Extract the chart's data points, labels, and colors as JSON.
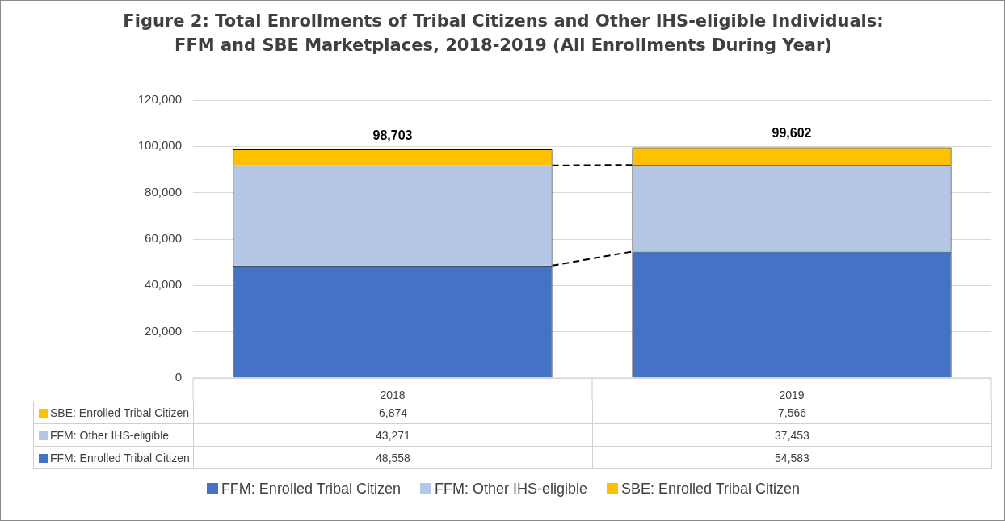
{
  "chart_data": {
    "type": "bar",
    "title": "Figure 2:  Total Enrollments of Tribal Citizens and Other IHS-eligible Individuals: FFM and SBE Marketplaces, 2018-2019 (All Enrollments During Year)",
    "categories": [
      "2018",
      "2019"
    ],
    "series": [
      {
        "name": "FFM: Enrolled Tribal Citizen",
        "color": "#4472c4",
        "values": [
          48558,
          54583
        ],
        "value_labels": [
          "48,558",
          "54,583"
        ]
      },
      {
        "name": "FFM: Other IHS-eligible",
        "color": "#b4c7e7",
        "values": [
          43271,
          37453
        ],
        "value_labels": [
          "43,271",
          "37,453"
        ]
      },
      {
        "name": "SBE: Enrolled Tribal Citizen",
        "color": "#ffc000",
        "values": [
          6874,
          7566
        ],
        "value_labels": [
          "6,874",
          "7,566"
        ]
      }
    ],
    "stacked": true,
    "totals": [
      "98,703",
      "99,602"
    ],
    "ylim": [
      0,
      120000
    ],
    "yticks": [
      0,
      {
        "value": 20000,
        "label": "20,000"
      },
      {
        "value": 40000,
        "label": "40,000"
      },
      {
        "value": 60000,
        "label": "60,000"
      },
      {
        "value": 80000,
        "label": "80,000"
      },
      {
        "value": 100000,
        "label": "100,000"
      },
      {
        "value": 120000,
        "label": "120,000"
      }
    ],
    "grid": "y",
    "legend": "bottom"
  }
}
